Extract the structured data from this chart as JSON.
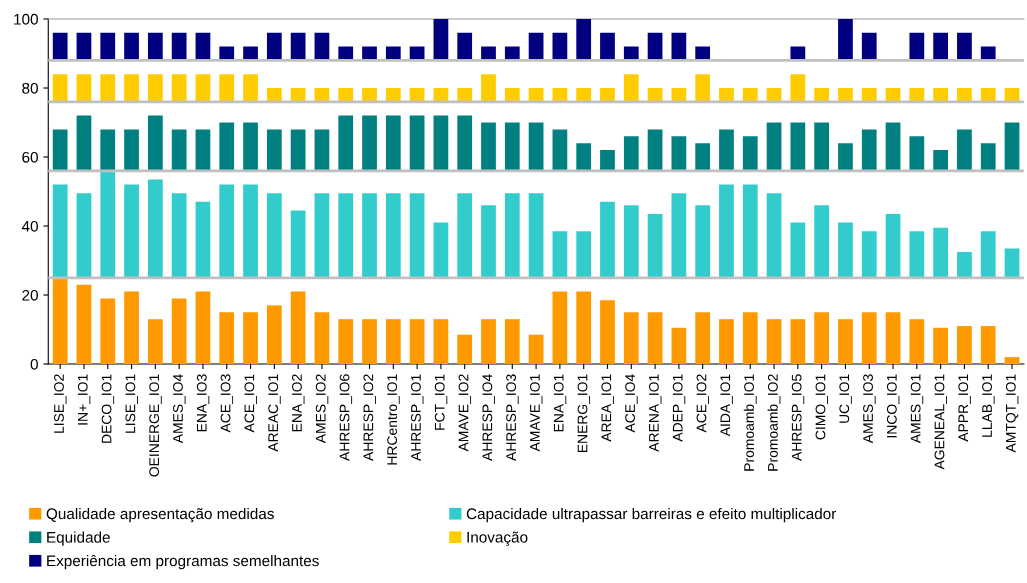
{
  "chart_data": {
    "type": "bar",
    "categories": [
      "LISE_IO2",
      "IN+_IO1",
      "DECO_IO1",
      "LISE_IO1",
      "OEINERGE_IO1",
      "AMES_IO4",
      "ENA_IO3",
      "ACE_IO3",
      "ACE_IO1",
      "AREAC_IO1",
      "ENA_IO2",
      "AMES_IO2",
      "AHRESP_IO6",
      "AHRESP_IO2",
      "HRCentro_IO1",
      "AHRESP_IO1",
      "FCT_IO1",
      "AMAVE_IO2",
      "AHRESP_IO4",
      "AHRESP_IO3",
      "AMAVE_IO1",
      "ENA_IO1",
      "ENERG_IO1",
      "AREA_IO1",
      "ACE_IO4",
      "ARENA_IO1",
      "ADEP_IO1",
      "ACE_IO2",
      "AIDA_IO1",
      "Promoamb_IO1",
      "Promoamb_IO2",
      "AHRESP_IO5",
      "CIMO_IO1",
      "UC_IO1",
      "AMES_IO3",
      "INCO_IO1",
      "AMES_IO1",
      "AGENEAL_IO1",
      "APPR_IO1",
      "LLAB_IO1",
      "AMTQT_IO1"
    ],
    "series": [
      {
        "name": "Qualidade apresentação medidas",
        "color": "#ff9900",
        "base": [
          0,
          0,
          0,
          0,
          0,
          0,
          0,
          0,
          0,
          0,
          0,
          0,
          0,
          0,
          0,
          0,
          0,
          0,
          0,
          0,
          0,
          0,
          0,
          0,
          0,
          0,
          0,
          0,
          0,
          0,
          0,
          0,
          0,
          0,
          0,
          0,
          0,
          0,
          0,
          0,
          0
        ],
        "values": [
          25,
          23,
          19,
          21,
          13,
          19,
          21,
          15,
          15,
          17,
          21,
          15,
          13,
          13,
          13,
          13,
          13,
          8.5,
          13,
          13,
          8.5,
          21,
          21,
          18.5,
          15,
          15,
          10.5,
          15,
          13,
          15,
          13,
          13,
          15,
          13,
          15,
          15,
          13,
          10.5,
          11,
          11,
          2
        ]
      },
      {
        "name": "Capacidade ultrapassar barreiras e efeito multiplicador",
        "color": "#33cccc",
        "base": [
          25,
          25,
          25,
          25,
          25,
          25,
          25,
          25,
          25,
          25,
          25,
          25,
          25,
          25,
          25,
          25,
          25,
          25,
          25,
          25,
          25,
          25,
          25,
          25,
          25,
          25,
          25,
          25,
          25,
          25,
          25,
          25,
          25,
          25,
          25,
          25,
          25,
          25,
          25,
          25,
          25
        ],
        "values": [
          27,
          24.5,
          31,
          27,
          28.5,
          24.5,
          22,
          27,
          27,
          24.5,
          19.5,
          24.5,
          24.5,
          24.5,
          24.5,
          24.5,
          16,
          24.5,
          21,
          24.5,
          24.5,
          13.5,
          13.5,
          22,
          21,
          18.5,
          24.5,
          21,
          27,
          27,
          24.5,
          16,
          21,
          16,
          13.5,
          18.5,
          13.5,
          14.5,
          7.5,
          13.5,
          8.5
        ]
      },
      {
        "name": "Equidade",
        "color": "#008080",
        "base": [
          56,
          56,
          56,
          56,
          56,
          56,
          56,
          56,
          56,
          56,
          56,
          56,
          56,
          56,
          56,
          56,
          56,
          56,
          56,
          56,
          56,
          56,
          56,
          56,
          56,
          56,
          56,
          56,
          56,
          56,
          56,
          56,
          56,
          56,
          56,
          56,
          56,
          56,
          56,
          56,
          56
        ],
        "values": [
          12,
          16,
          12,
          12,
          16,
          12,
          12,
          14,
          14,
          12,
          12,
          12,
          16,
          16,
          16,
          16,
          16,
          16,
          14,
          14,
          14,
          12,
          8,
          6,
          10,
          12,
          10,
          8,
          12,
          10,
          14,
          14,
          14,
          8,
          12,
          14,
          10,
          6,
          12,
          8,
          14
        ]
      },
      {
        "name": "Inovação",
        "color": "#ffcc00",
        "base": [
          76,
          76,
          76,
          76,
          76,
          76,
          76,
          76,
          76,
          76,
          76,
          76,
          76,
          76,
          76,
          76,
          76,
          76,
          76,
          76,
          76,
          76,
          76,
          76,
          76,
          76,
          76,
          76,
          76,
          76,
          76,
          76,
          76,
          76,
          76,
          76,
          76,
          76,
          76,
          76,
          76
        ],
        "values": [
          8,
          8,
          8,
          8,
          8,
          8,
          8,
          8,
          8,
          4,
          4,
          4,
          4,
          4,
          4,
          4,
          4,
          4,
          8,
          4,
          4,
          4,
          4,
          4,
          8,
          4,
          4,
          8,
          4,
          4,
          4,
          8,
          4,
          4,
          4,
          4,
          4,
          4,
          4,
          4,
          4
        ]
      },
      {
        "name": "Experiência em programas semelhantes",
        "color": "#000080",
        "base": [
          88,
          88,
          88,
          88,
          88,
          88,
          88,
          88,
          88,
          88,
          88,
          88,
          88,
          88,
          88,
          88,
          88,
          88,
          88,
          88,
          88,
          88,
          88,
          88,
          88,
          88,
          88,
          88,
          null,
          null,
          null,
          88,
          null,
          88,
          88,
          null,
          88,
          88,
          88,
          88,
          null
        ],
        "values": [
          8,
          8,
          8,
          8,
          8,
          8,
          8,
          4,
          4,
          8,
          8,
          8,
          4,
          4,
          4,
          4,
          12,
          8,
          4,
          4,
          8,
          8,
          12,
          8,
          4,
          8,
          8,
          4,
          null,
          null,
          null,
          4,
          null,
          12,
          8,
          null,
          8,
          8,
          8,
          4,
          null
        ]
      }
    ],
    "ylim": [
      0,
      100
    ],
    "yticks": [
      0,
      20,
      40,
      60,
      80,
      100
    ],
    "ref_lines": [
      {
        "axis": "y",
        "value": 25,
        "color": "#c0c0c0"
      },
      {
        "axis": "y",
        "value": 56,
        "color": "#c0c0c0"
      },
      {
        "axis": "y",
        "value": 76,
        "color": "#c0c0c0"
      },
      {
        "axis": "y",
        "value": 88,
        "color": "#c0c0c0"
      }
    ],
    "grid": false,
    "legend": "bottom"
  }
}
